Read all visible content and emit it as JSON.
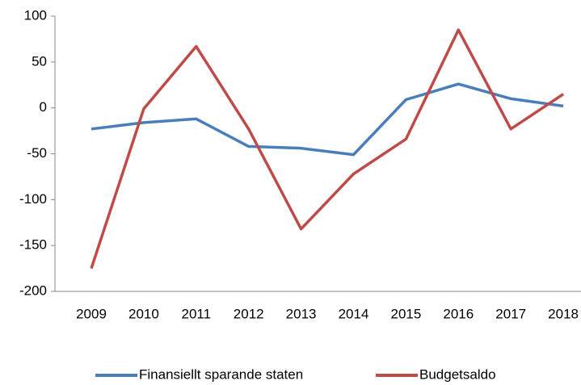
{
  "chart_data": {
    "type": "line",
    "categories": [
      "2009",
      "2010",
      "2011",
      "2012",
      "2013",
      "2014",
      "2015",
      "2016",
      "2017",
      "2018"
    ],
    "series": [
      {
        "name": "Finansiellt sparande staten",
        "color": "#4a7ebb",
        "values": [
          -23,
          -16,
          -12,
          -42,
          -44,
          -51,
          9,
          26,
          10,
          2
        ]
      },
      {
        "name": "Budgetsaldo",
        "color": "#be4b48",
        "values": [
          -175,
          -1,
          67,
          -23,
          -132,
          -72,
          -34,
          85,
          -23,
          15
        ]
      }
    ],
    "ylim": [
      -200,
      100
    ],
    "yticks": [
      -200,
      -150,
      -100,
      -50,
      0,
      50,
      100
    ],
    "grid": false,
    "legend": "bottom"
  }
}
